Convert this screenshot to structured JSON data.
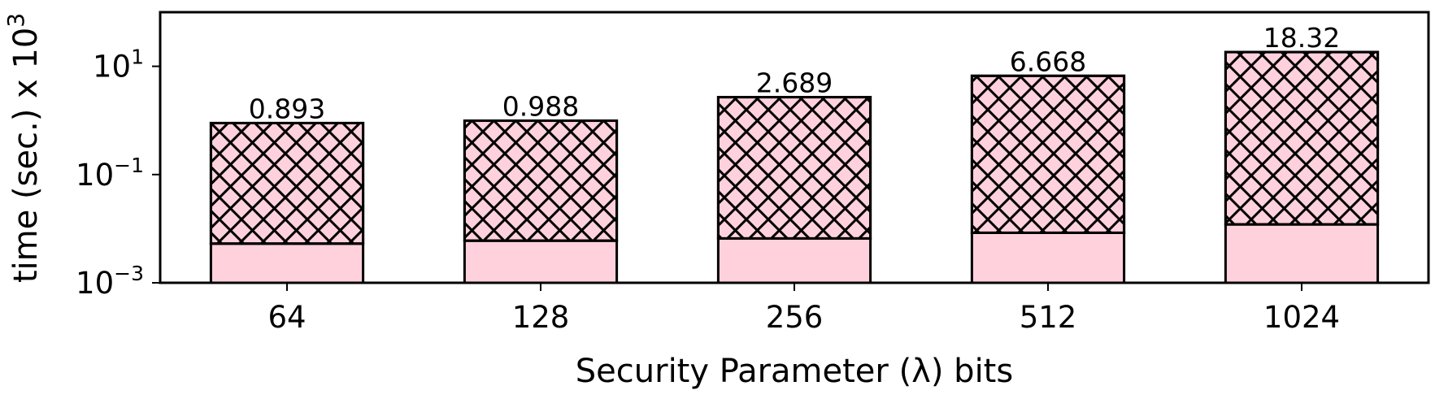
{
  "chart_data": {
    "type": "bar",
    "stacked": true,
    "yscale": "log",
    "categories": [
      "64",
      "128",
      "256",
      "512",
      "1024"
    ],
    "series": [
      {
        "name": "lower (solid)",
        "values": [
          0.0043,
          0.005,
          0.0056,
          0.0074,
          0.011
        ],
        "color": "#ffd1dc",
        "hatch": "none"
      },
      {
        "name": "upper (cross-hatched)",
        "values": [
          0.8887,
          0.983,
          2.6834,
          6.6606,
          18.309
        ],
        "color": "#ffd1dc",
        "hatch": "cross"
      }
    ],
    "totals": [
      0.893,
      0.988,
      2.689,
      6.668,
      18.32
    ],
    "total_labels": [
      "0.893",
      "0.988",
      "2.689",
      "6.668",
      "18.32"
    ],
    "xlabel": "Security Parameter (λ) bits",
    "ylabel": "time (sec.) x 10",
    "ylabel_sup": "3",
    "ylim": [
      0.001,
      100
    ],
    "yticks": [
      {
        "value": 0.001,
        "base": "10",
        "exp": "−3"
      },
      {
        "value": 0.1,
        "base": "10",
        "exp": "−1"
      },
      {
        "value": 10,
        "base": "10",
        "exp": "1"
      }
    ],
    "grid": false,
    "legend": "none"
  }
}
